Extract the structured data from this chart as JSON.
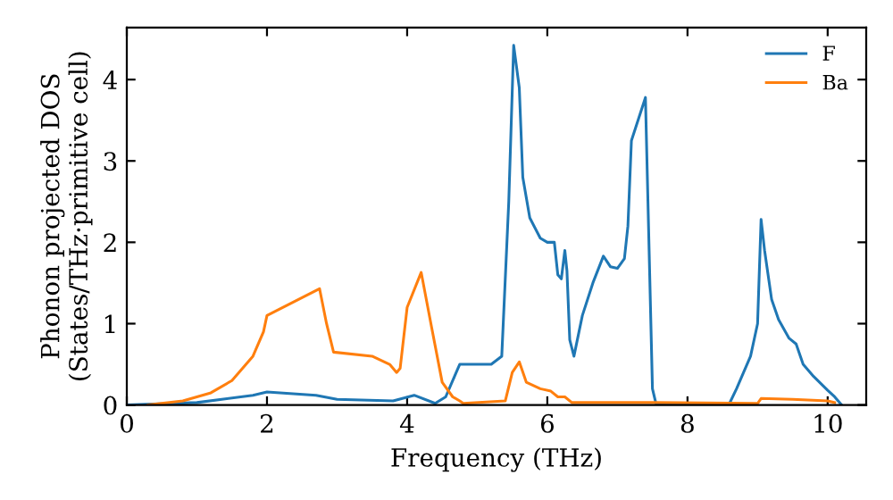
{
  "chart_data": {
    "type": "line",
    "xlabel": "Frequency (THz)",
    "ylabel": "Phonon projected DOS\n(States/THz·primitive cell)",
    "xlim": [
      0,
      10.55
    ],
    "ylim": [
      0,
      4.64
    ],
    "xticks": [
      0,
      2,
      4,
      6,
      8,
      10
    ],
    "yticks": [
      0,
      1,
      2,
      3,
      4
    ],
    "legend": "top right",
    "grid": false,
    "series": [
      {
        "name": "F",
        "color": "#1f77b4",
        "x": [
          0,
          1,
          1.8,
          2,
          2.7,
          3,
          3.8,
          4.1,
          4.4,
          4.55,
          4.7,
          4.75,
          5.2,
          5.35,
          5.45,
          5.52,
          5.6,
          5.65,
          5.75,
          5.9,
          6.0,
          6.1,
          6.15,
          6.2,
          6.25,
          6.28,
          6.32,
          6.38,
          6.5,
          6.65,
          6.8,
          6.9,
          7.0,
          7.1,
          7.15,
          7.2,
          7.4,
          7.5,
          7.55,
          8.6,
          8.7,
          8.9,
          9.0,
          9.05,
          9.1,
          9.2,
          9.3,
          9.45,
          9.55,
          9.65,
          9.8,
          10.0,
          10.1,
          10.2
        ],
        "values": [
          0,
          0.03,
          0.12,
          0.16,
          0.12,
          0.07,
          0.05,
          0.12,
          0.02,
          0.1,
          0.4,
          0.5,
          0.5,
          0.6,
          2.5,
          4.42,
          3.9,
          2.8,
          2.3,
          2.05,
          2.0,
          2.0,
          1.6,
          1.55,
          1.9,
          1.65,
          0.8,
          0.6,
          1.1,
          1.5,
          1.83,
          1.7,
          1.68,
          1.8,
          2.2,
          3.25,
          3.78,
          0.2,
          0.02,
          0.02,
          0.2,
          0.6,
          1.0,
          2.28,
          1.9,
          1.3,
          1.05,
          0.82,
          0.75,
          0.5,
          0.35,
          0.18,
          0.1,
          0.0
        ]
      },
      {
        "name": "Ba",
        "color": "#ff7f0e",
        "x": [
          0.3,
          0.8,
          1.2,
          1.5,
          1.8,
          1.95,
          2.0,
          2.75,
          2.85,
          2.95,
          3.5,
          3.75,
          3.85,
          3.9,
          4.0,
          4.2,
          4.35,
          4.5,
          4.65,
          4.75,
          4.8,
          5.4,
          5.5,
          5.6,
          5.7,
          5.9,
          6.05,
          6.15,
          6.25,
          6.35,
          7.5,
          9.0,
          9.05,
          9.5,
          10.0,
          10.1
        ],
        "values": [
          0,
          0.05,
          0.15,
          0.3,
          0.6,
          0.9,
          1.1,
          1.43,
          1.0,
          0.65,
          0.6,
          0.5,
          0.4,
          0.45,
          1.2,
          1.63,
          0.95,
          0.28,
          0.1,
          0.05,
          0.02,
          0.05,
          0.4,
          0.53,
          0.28,
          0.2,
          0.17,
          0.1,
          0.1,
          0.03,
          0.03,
          0.02,
          0.08,
          0.07,
          0.05,
          0.03
        ]
      }
    ]
  }
}
